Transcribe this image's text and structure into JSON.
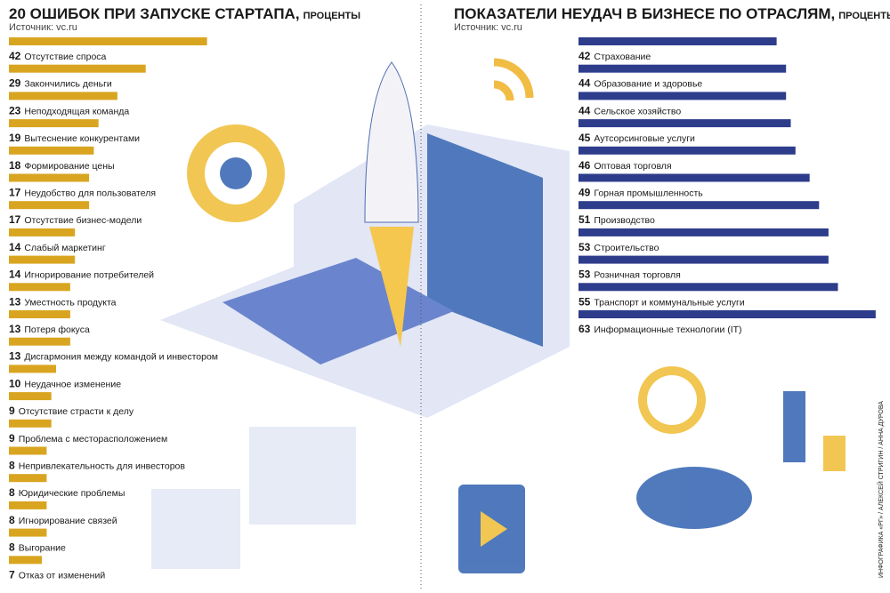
{
  "credit": "ИНФОГРАФИКА «РГ» / АЛЕКСЕЙ СТРИГИН / АННА ДУРОВА",
  "chart_data": [
    {
      "type": "bar",
      "orientation": "horizontal",
      "title": "20 ОШИБОК ПРИ ЗАПУСКЕ СТАРТАПА,",
      "subtitle": "ПРОЦЕНТЫ",
      "source": "Источник: vc.ru",
      "color": "#d9a520",
      "categories": [
        "Отсутствие спроса",
        "Закончились деньги",
        "Неподходящая команда",
        "Вытеснение конкурентами",
        "Формирование цены",
        "Неудобство для пользователя",
        "Отсутствие бизнес-модели",
        "Слабый маркетинг",
        "Игнорирование потребителей",
        "Уместность продукта",
        "Потеря фокуса",
        "Дисгармония между командой и инвестором",
        "Неудачное изменение",
        "Отсутствие страсти к делу",
        "Проблема с месторасположением",
        "Непривлекательность для инвесторов",
        "Юридические проблемы",
        "Игнорирование связей",
        "Выгорание",
        "Отказ от изменений"
      ],
      "values": [
        42,
        29,
        23,
        19,
        18,
        17,
        17,
        14,
        14,
        13,
        13,
        13,
        10,
        9,
        9,
        8,
        8,
        8,
        8,
        7
      ]
    },
    {
      "type": "bar",
      "orientation": "horizontal",
      "title": "ПОКАЗАТЕЛИ НЕУДАЧ В БИЗНЕСЕ ПО ОТРАСЛЯМ,",
      "subtitle": "ПРОЦЕНТЫ",
      "source": "Источник: vc.ru",
      "color": "#2e3c8c",
      "categories": [
        "Страхование",
        "Образование и здоровье",
        "Сельское хозяйство",
        "Аутсорсинговые услуги",
        "Оптовая торговля",
        "Горная промышленность",
        "Производство",
        "Строительство",
        "Розничная торговля",
        "Транспорт и коммунальные услуги",
        "Информационные технологии (IT)"
      ],
      "values": [
        42,
        44,
        44,
        45,
        46,
        49,
        51,
        53,
        53,
        55,
        63
      ]
    }
  ]
}
